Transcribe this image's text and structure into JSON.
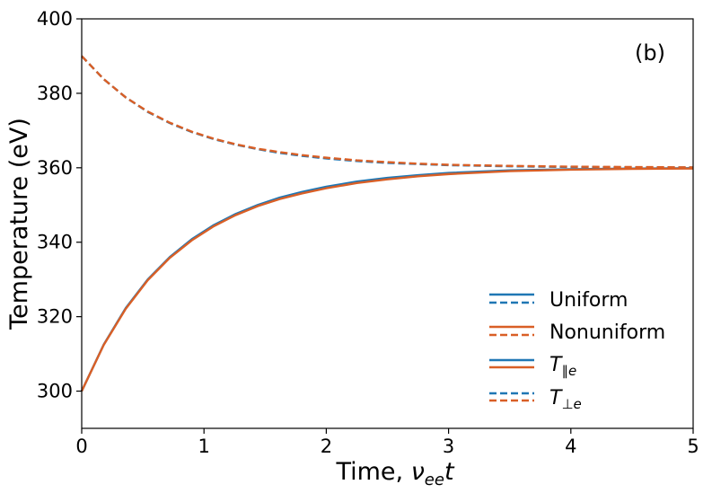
{
  "chart_data": {
    "type": "line",
    "panel_label": "(b)",
    "xlabel_prefix": "Time, ",
    "xlabel_var": "ν",
    "xlabel_sub": "ee",
    "xlabel_suffix": "t",
    "ylabel": "Temperature (eV)",
    "xlim": [
      0,
      5
    ],
    "ylim": [
      290,
      400
    ],
    "xticks": [
      0,
      1,
      2,
      3,
      4,
      5
    ],
    "xtick_labels": [
      "0",
      "1",
      "2",
      "3",
      "4",
      "5"
    ],
    "yticks": [
      300,
      320,
      340,
      360,
      380,
      400
    ],
    "ytick_labels": [
      "300",
      "320",
      "340",
      "360",
      "380",
      "400"
    ],
    "grid": false,
    "legend_position": "bottom-right",
    "legend": {
      "uniform": "Uniform",
      "nonuniform": "Nonuniform",
      "tpar_base": "T",
      "tpar_sub": "∥e",
      "tperp_base": "T",
      "tperp_sub": "⊥e"
    },
    "colors": {
      "uniform": "#1f77b4",
      "nonuniform": "#d95f26"
    },
    "x": [
      0,
      0.18,
      0.36,
      0.54,
      0.72,
      0.9,
      1.08,
      1.26,
      1.44,
      1.62,
      1.8,
      2.0,
      2.25,
      2.5,
      2.75,
      3.0,
      3.5,
      4.0,
      4.5,
      5.0
    ],
    "series": [
      {
        "name": "Uniform",
        "component": "T_par",
        "style": "solid",
        "color": "#1f77b4",
        "values": [
          300,
          312.5,
          322.3,
          330.0,
          336.0,
          340.8,
          344.6,
          347.6,
          350.0,
          352.0,
          353.5,
          354.9,
          356.3,
          357.3,
          358.0,
          358.6,
          359.3,
          359.6,
          359.8,
          359.9
        ]
      },
      {
        "name": "Uniform",
        "component": "T_perp",
        "style": "dashed",
        "color": "#1f77b4",
        "values": [
          390,
          383.8,
          378.9,
          375.0,
          372.0,
          369.6,
          367.7,
          366.2,
          365.0,
          364.0,
          363.2,
          362.5,
          361.8,
          361.3,
          361.0,
          360.7,
          360.4,
          360.2,
          360.1,
          360.1
        ]
      },
      {
        "name": "Nonuniform",
        "component": "T_par",
        "style": "solid",
        "color": "#d95f26",
        "values": [
          300,
          312.4,
          322.1,
          329.8,
          335.8,
          340.5,
          344.3,
          347.3,
          349.7,
          351.6,
          353.1,
          354.5,
          355.9,
          356.9,
          357.7,
          358.3,
          359.1,
          359.5,
          359.7,
          359.8
        ]
      },
      {
        "name": "Nonuniform",
        "component": "T_perp",
        "style": "dashed",
        "color": "#d95f26",
        "values": [
          390,
          383.8,
          378.9,
          375.1,
          372.1,
          369.7,
          367.8,
          366.3,
          365.1,
          364.2,
          363.4,
          362.7,
          362.0,
          361.5,
          361.1,
          360.8,
          360.5,
          360.3,
          360.2,
          360.1
        ]
      }
    ]
  }
}
